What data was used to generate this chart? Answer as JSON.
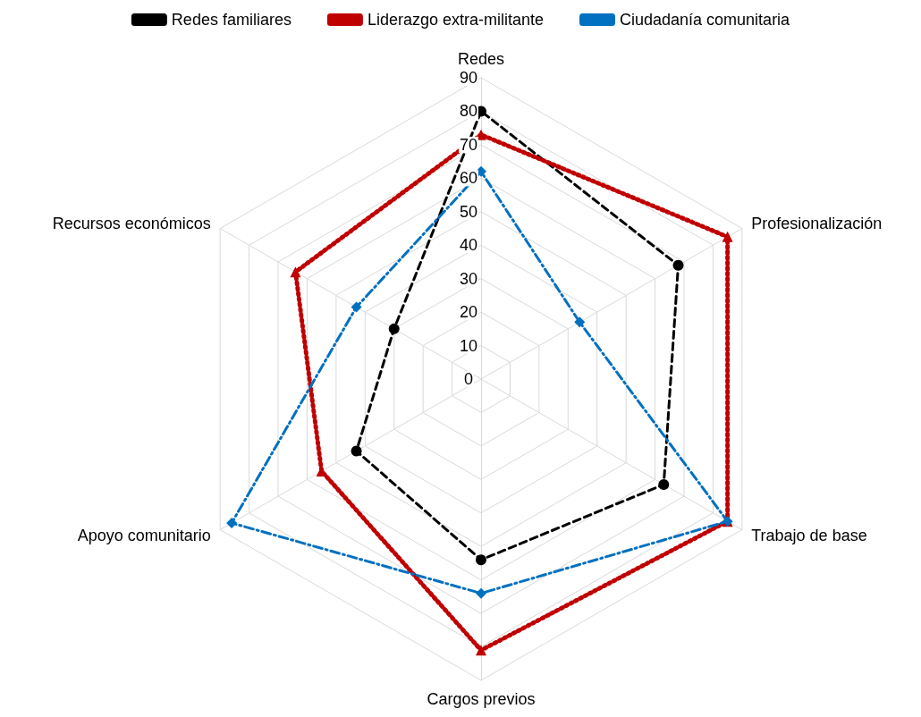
{
  "chart_data": {
    "type": "radar",
    "categories": [
      "Redes",
      "Profesionalización",
      "Trabajo de base",
      "Cargos previos",
      "Apoyo comunitario",
      "Recursos económicos"
    ],
    "series": [
      {
        "name": "Redes familiares",
        "color": "#000000",
        "marker": "circle",
        "line_style": "dashed",
        "values": [
          80,
          68,
          63,
          54,
          43,
          30
        ]
      },
      {
        "name": "Liderazgo extra-militante",
        "color": "#c00000",
        "marker": "triangle",
        "line_style": "dotted",
        "values": [
          73,
          85,
          85,
          81,
          55,
          64
        ]
      },
      {
        "name": "Ciudadanía comunitaria",
        "color": "#0070c0",
        "marker": "diamond",
        "line_style": "dashdot",
        "values": [
          62,
          34,
          85,
          64,
          86,
          43
        ]
      }
    ],
    "ylim": [
      0,
      90
    ],
    "yticks": [
      0,
      10,
      20,
      30,
      40,
      50,
      60,
      70,
      80,
      90
    ],
    "grid": true,
    "legend": "top"
  }
}
